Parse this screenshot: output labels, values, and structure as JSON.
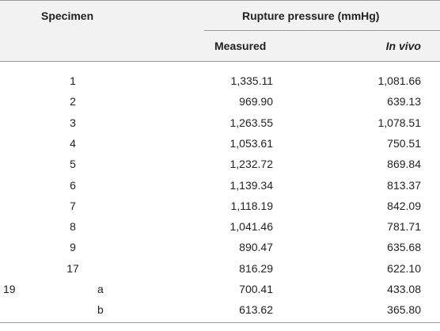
{
  "table": {
    "header": {
      "specimen": "Specimen",
      "group": "Rupture pressure (mmHg)",
      "measured": "Measured",
      "in_vivo": "In vivo"
    },
    "rows": [
      {
        "specimen": "1",
        "measured": "1,335.11",
        "in_vivo": "1,081.66"
      },
      {
        "specimen": "2",
        "measured": "969.90",
        "in_vivo": "639.13"
      },
      {
        "specimen": "3",
        "measured": "1,263.55",
        "in_vivo": "1,078.51"
      },
      {
        "specimen": "4",
        "measured": "1,053.61",
        "in_vivo": "750.51"
      },
      {
        "specimen": "5",
        "measured": "1,232.72",
        "in_vivo": "869.84"
      },
      {
        "specimen": "6",
        "measured": "1,139.34",
        "in_vivo": "813.37"
      },
      {
        "specimen": "7",
        "measured": "1,118.19",
        "in_vivo": "842.09"
      },
      {
        "specimen": "8",
        "measured": "1,041.46",
        "in_vivo": "781.71"
      },
      {
        "specimen": "9",
        "measured": "890.47",
        "in_vivo": "635.68"
      },
      {
        "specimen": "17",
        "measured": "816.29",
        "in_vivo": "622.10"
      },
      {
        "specimen": "19",
        "sub": "a",
        "measured": "700.41",
        "in_vivo": "433.08"
      },
      {
        "sub": "b",
        "measured": "613.62",
        "in_vivo": "365.80"
      }
    ]
  }
}
